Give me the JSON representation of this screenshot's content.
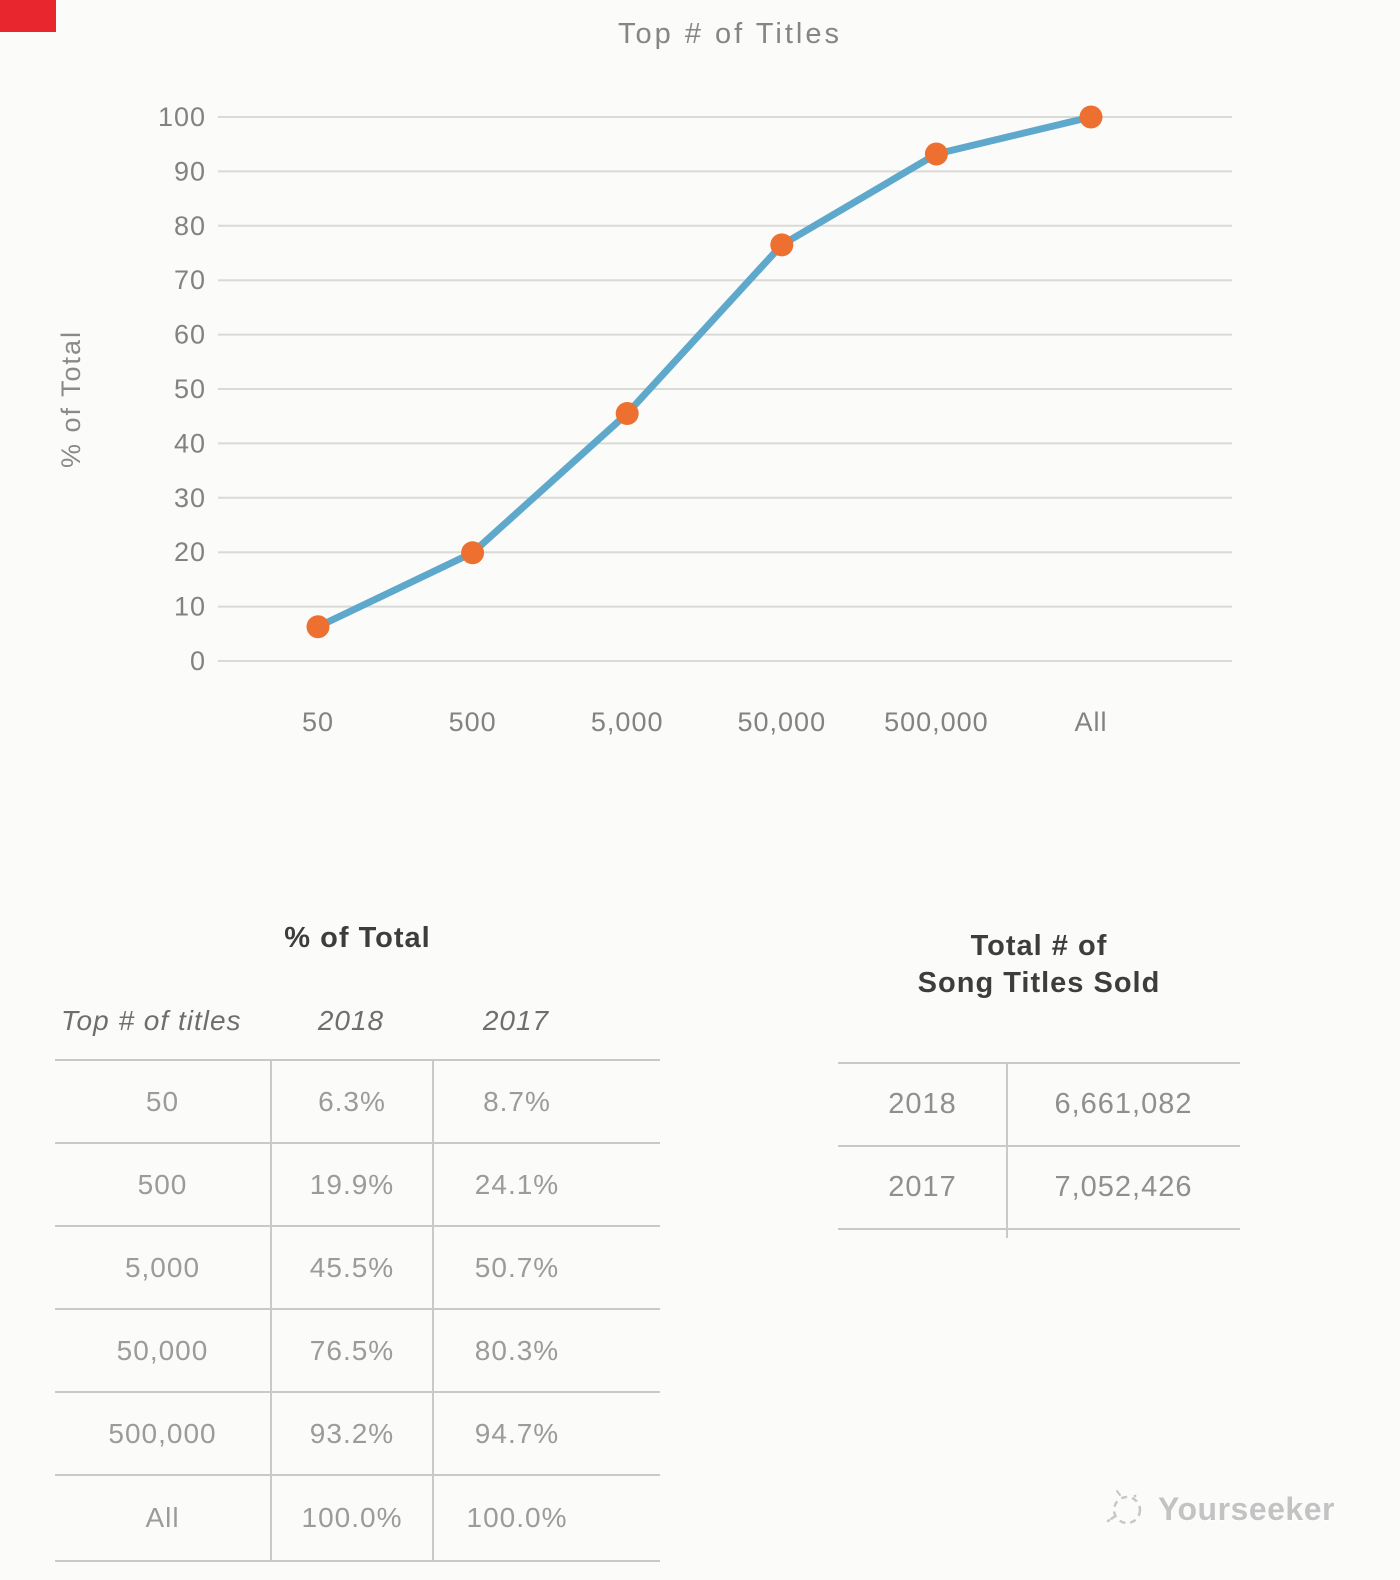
{
  "chart_data": {
    "type": "line",
    "title": "Top # of Titles",
    "xlabel": "",
    "ylabel": "% of Total",
    "categories": [
      "50",
      "500",
      "5,000",
      "50,000",
      "500,000",
      "All"
    ],
    "series": [
      {
        "name": "2018",
        "values": [
          6.3,
          19.9,
          45.5,
          76.5,
          93.2,
          100.0
        ]
      }
    ],
    "ylim": [
      0,
      100
    ],
    "ytick_step": 10,
    "grid": true,
    "legend": "none",
    "line_color": "#5ea9cb",
    "marker_color": "#ed7030"
  },
  "tables": {
    "percent_of_total": {
      "title": "% of Total",
      "columns": [
        "Top # of titles",
        "2018",
        "2017"
      ],
      "rows": [
        [
          "50",
          "6.3%",
          "8.7%"
        ],
        [
          "500",
          "19.9%",
          "24.1%"
        ],
        [
          "5,000",
          "45.5%",
          "50.7%"
        ],
        [
          "50,000",
          "76.5%",
          "80.3%"
        ],
        [
          "500,000",
          "93.2%",
          "94.7%"
        ],
        [
          "All",
          "100.0%",
          "100.0%"
        ]
      ]
    },
    "total_song_titles_sold": {
      "title_line1": "Total # of",
      "title_line2": "Song Titles Sold",
      "rows": [
        [
          "2018",
          "6,661,082"
        ],
        [
          "2017",
          "7,052,426"
        ]
      ]
    }
  },
  "watermark": {
    "label": "Yourseeker"
  },
  "colors": {
    "background": "#fbfbf9",
    "line": "#5ea9cb",
    "marker": "#ed7030",
    "gridline": "#d9d9d7",
    "axis_text": "#828282",
    "table_title_text": "#3d3d3d",
    "cell_text": "#9b9b9b",
    "table_border": "#c9c9c7",
    "watermark_text": "#c3c3c3",
    "corner_red": "#e8262d"
  }
}
